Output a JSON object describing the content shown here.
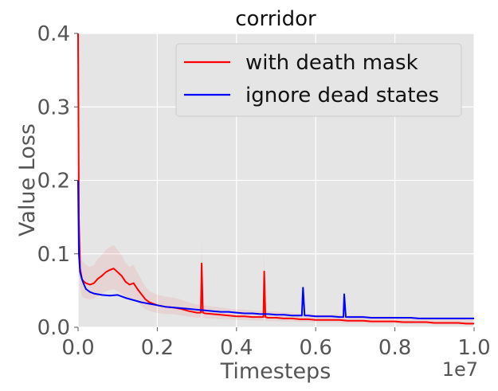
{
  "chart_data": {
    "type": "line",
    "title": "corridor",
    "xlabel": "Timesteps",
    "ylabel": "Value Loss",
    "x_offset_label": "1e7",
    "xlim": [
      0.0,
      1.0
    ],
    "ylim": [
      0.0,
      0.4
    ],
    "x_ticks": [
      "0.0",
      "0.2",
      "0.4",
      "0.6",
      "0.8",
      "1.0"
    ],
    "y_ticks": [
      "0.0",
      "0.1",
      "0.2",
      "0.3",
      "0.4"
    ],
    "grid": true,
    "legend_position": "top-right",
    "series": [
      {
        "name": "with death mask",
        "color": "#ff0000",
        "x": [
          0.0,
          0.002,
          0.005,
          0.01,
          0.015,
          0.02,
          0.03,
          0.04,
          0.05,
          0.06,
          0.07,
          0.08,
          0.09,
          0.1,
          0.11,
          0.12,
          0.13,
          0.14,
          0.15,
          0.16,
          0.17,
          0.18,
          0.2,
          0.22,
          0.24,
          0.26,
          0.28,
          0.3,
          0.31,
          0.312,
          0.315,
          0.32,
          0.34,
          0.36,
          0.38,
          0.4,
          0.42,
          0.44,
          0.46,
          0.468,
          0.47,
          0.473,
          0.48,
          0.5,
          0.52,
          0.54,
          0.56,
          0.58,
          0.6,
          0.62,
          0.64,
          0.66,
          0.68,
          0.7,
          0.72,
          0.74,
          0.76,
          0.78,
          0.8,
          0.82,
          0.84,
          0.86,
          0.88,
          0.9,
          0.92,
          0.94,
          0.96,
          0.98,
          1.0
        ],
        "values": [
          0.4,
          0.15,
          0.08,
          0.065,
          0.062,
          0.06,
          0.058,
          0.06,
          0.066,
          0.07,
          0.075,
          0.078,
          0.08,
          0.075,
          0.07,
          0.062,
          0.058,
          0.06,
          0.052,
          0.045,
          0.038,
          0.034,
          0.03,
          0.028,
          0.027,
          0.025,
          0.022,
          0.02,
          0.02,
          0.087,
          0.02,
          0.019,
          0.018,
          0.017,
          0.016,
          0.015,
          0.015,
          0.014,
          0.014,
          0.014,
          0.076,
          0.014,
          0.013,
          0.013,
          0.012,
          0.012,
          0.011,
          0.011,
          0.01,
          0.01,
          0.01,
          0.01,
          0.009,
          0.009,
          0.009,
          0.008,
          0.008,
          0.008,
          0.008,
          0.007,
          0.007,
          0.007,
          0.007,
          0.006,
          0.006,
          0.006,
          0.006,
          0.005,
          0.005
        ]
      },
      {
        "name": "ignore dead states",
        "color": "#0000ff",
        "x": [
          0.0,
          0.002,
          0.005,
          0.01,
          0.015,
          0.02,
          0.03,
          0.04,
          0.05,
          0.06,
          0.08,
          0.1,
          0.12,
          0.14,
          0.16,
          0.18,
          0.2,
          0.22,
          0.24,
          0.26,
          0.28,
          0.3,
          0.32,
          0.34,
          0.36,
          0.38,
          0.4,
          0.42,
          0.44,
          0.46,
          0.48,
          0.5,
          0.52,
          0.54,
          0.56,
          0.565,
          0.568,
          0.572,
          0.58,
          0.6,
          0.62,
          0.64,
          0.66,
          0.67,
          0.672,
          0.676,
          0.68,
          0.7,
          0.72,
          0.74,
          0.76,
          0.78,
          0.8,
          0.82,
          0.84,
          0.86,
          0.88,
          0.9,
          0.92,
          0.94,
          0.96,
          0.98,
          1.0
        ],
        "values": [
          0.2,
          0.1,
          0.075,
          0.065,
          0.058,
          0.052,
          0.048,
          0.046,
          0.045,
          0.044,
          0.043,
          0.044,
          0.04,
          0.037,
          0.034,
          0.032,
          0.03,
          0.028,
          0.027,
          0.026,
          0.025,
          0.024,
          0.023,
          0.022,
          0.021,
          0.021,
          0.02,
          0.019,
          0.019,
          0.018,
          0.018,
          0.017,
          0.017,
          0.016,
          0.016,
          0.016,
          0.054,
          0.016,
          0.016,
          0.015,
          0.015,
          0.015,
          0.014,
          0.014,
          0.045,
          0.014,
          0.014,
          0.014,
          0.014,
          0.013,
          0.013,
          0.013,
          0.013,
          0.013,
          0.013,
          0.012,
          0.012,
          0.012,
          0.012,
          0.012,
          0.012,
          0.012,
          0.012
        ]
      }
    ]
  }
}
